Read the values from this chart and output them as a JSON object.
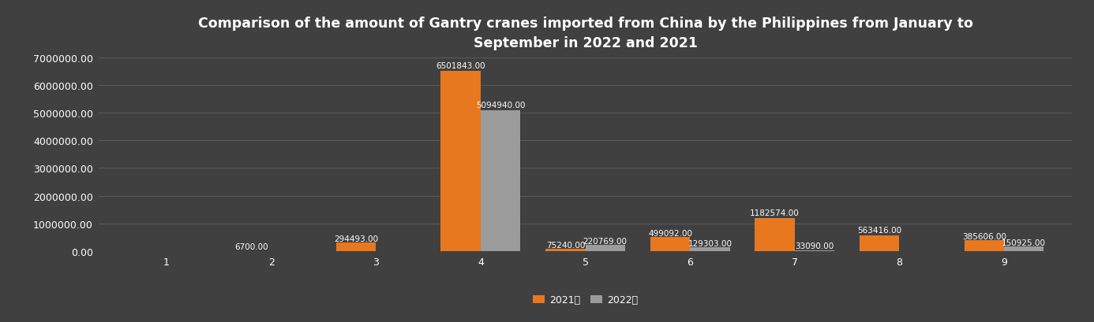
{
  "title_line1": "Comparison of the amount of Gantry cranes imported from China by the Philippines from January to",
  "title_line2": "September in 2022 and 2021",
  "months": [
    1,
    2,
    3,
    4,
    5,
    6,
    7,
    8,
    9
  ],
  "values_2021": [
    0,
    6700.0,
    294493.0,
    6501843.0,
    75240.0,
    499092.0,
    1182574.0,
    563416.0,
    385606.0
  ],
  "values_2022": [
    0,
    0,
    0,
    5094940.0,
    220769.0,
    129303.0,
    33090.0,
    0,
    150925.0
  ],
  "bar_color_2021": "#E87820",
  "bar_color_2022": "#9B9B9B",
  "background_color": "#404040",
  "plot_bg_color": "#404040",
  "text_color": "#FFFFFF",
  "grid_color": "#5a5a5a",
  "legend_2021": "2021年",
  "legend_2022": "2022年",
  "ylim": [
    0,
    7000000
  ],
  "yticks": [
    0,
    1000000,
    2000000,
    3000000,
    4000000,
    5000000,
    6000000,
    7000000
  ],
  "bar_width": 0.38,
  "label_fontsize": 7.5,
  "title_fontsize": 12.5,
  "tick_fontsize": 9,
  "legend_fontsize": 9
}
